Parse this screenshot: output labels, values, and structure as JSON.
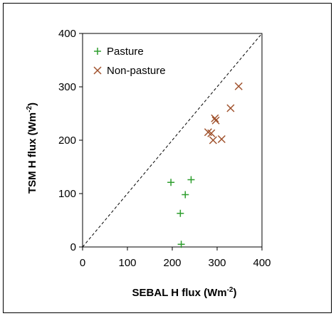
{
  "chart_data": {
    "type": "scatter",
    "xlabel": "SEBAL H flux (Wm",
    "xlabel_sup": "-2",
    "xlabel_end": ")",
    "ylabel": "TSM H flux (Wm",
    "ylabel_sup": "-2",
    "ylabel_end": ")",
    "xlim": [
      0,
      400
    ],
    "ylim": [
      0,
      400
    ],
    "x_ticks": [
      "0",
      "100",
      "200",
      "300",
      "400"
    ],
    "y_ticks": [
      "0",
      "100",
      "200",
      "300",
      "400"
    ],
    "grid": false,
    "legend_position": "top-left",
    "reference_line": "1:1 dashed diagonal",
    "series": [
      {
        "name": "Pasture",
        "marker": "plus",
        "color": "#2e9e2e",
        "points": [
          {
            "x": 197,
            "y": 121
          },
          {
            "x": 218,
            "y": 63
          },
          {
            "x": 220,
            "y": 5
          },
          {
            "x": 229,
            "y": 98
          },
          {
            "x": 242,
            "y": 126
          }
        ]
      },
      {
        "name": "Non-pasture",
        "marker": "cross",
        "color": "#a0522d",
        "points": [
          {
            "x": 280,
            "y": 215
          },
          {
            "x": 287,
            "y": 213
          },
          {
            "x": 291,
            "y": 200
          },
          {
            "x": 295,
            "y": 241
          },
          {
            "x": 297,
            "y": 237
          },
          {
            "x": 310,
            "y": 202
          },
          {
            "x": 330,
            "y": 260
          },
          {
            "x": 348,
            "y": 301
          }
        ]
      }
    ]
  }
}
